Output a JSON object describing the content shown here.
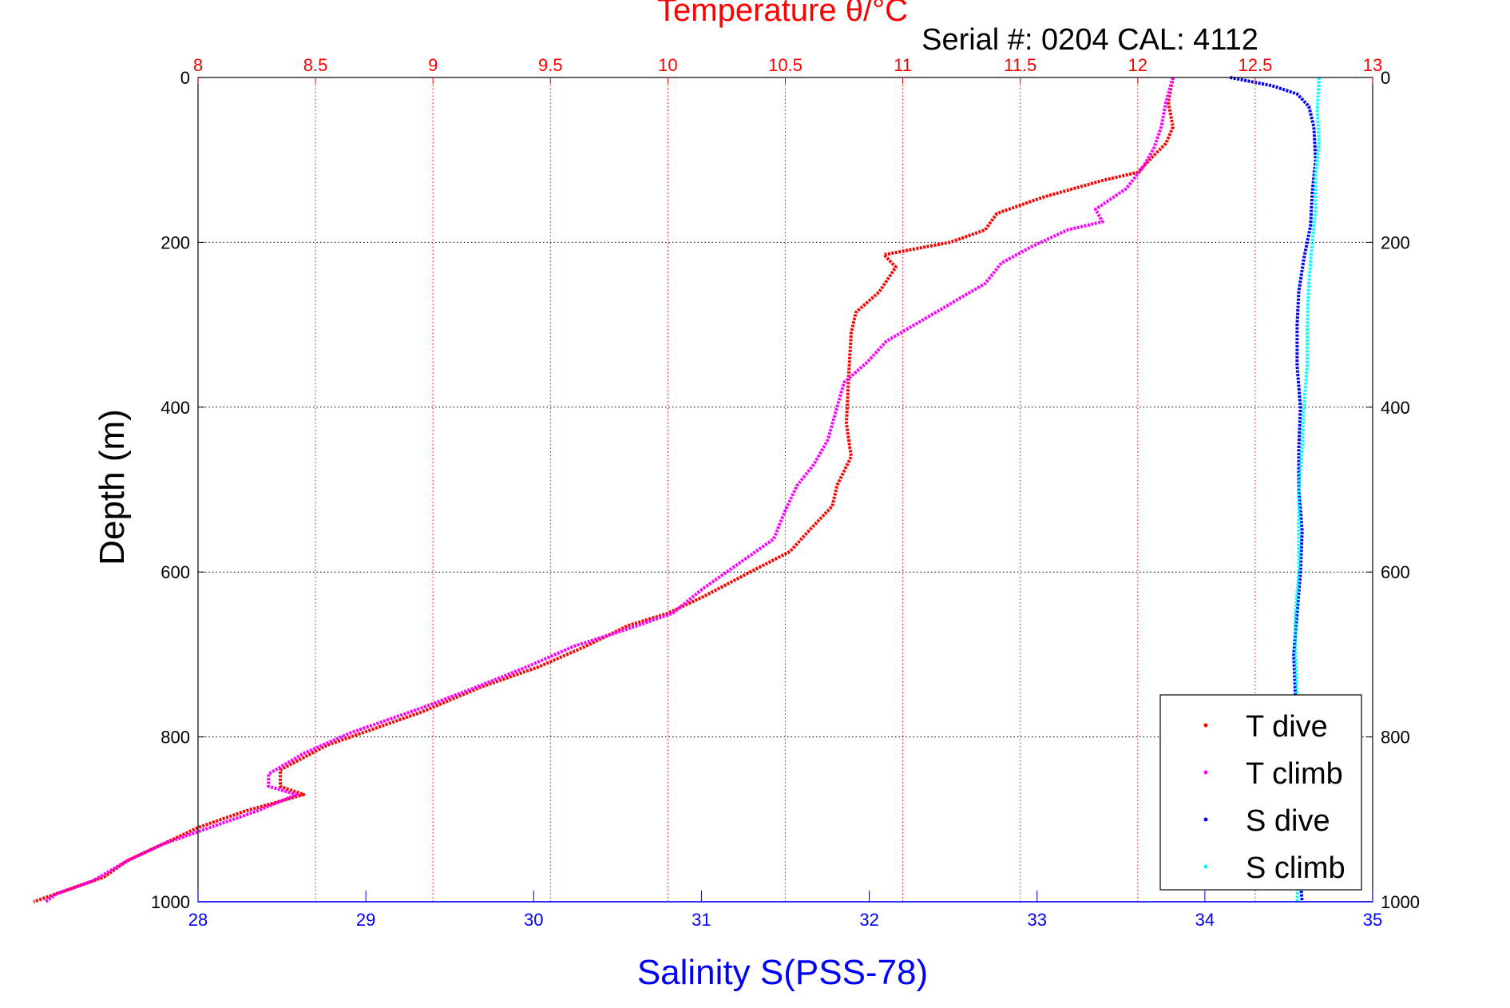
{
  "chart_data": {
    "type": "line",
    "title": "Temperature θ/°C",
    "subtitle": "Serial #: 0204  CAL: 4112",
    "ylabel": "Depth (m)",
    "x_top_label": "Temperature θ/°C",
    "x_bottom_label": "Salinity S(PSS-78)",
    "y_ticks": [
      "0",
      "200",
      "400",
      "600",
      "800",
      "1000"
    ],
    "y_tick_values": [
      0,
      200,
      400,
      600,
      800,
      1000
    ],
    "temp_ticks": [
      "8",
      "8.5",
      "9",
      "9.5",
      "10",
      "10.5",
      "11",
      "11.5",
      "12",
      "12.5",
      "13"
    ],
    "temp_tick_values": [
      8,
      8.5,
      9,
      9.5,
      10,
      10.5,
      11,
      11.5,
      12,
      12.5,
      13
    ],
    "sal_ticks": [
      "28",
      "29",
      "30",
      "31",
      "32",
      "33",
      "34",
      "35"
    ],
    "sal_tick_values": [
      28,
      29,
      30,
      31,
      32,
      33,
      34,
      35
    ],
    "ylim": [
      0,
      1000
    ],
    "temp_lim": [
      8,
      13
    ],
    "sal_lim": [
      28,
      35
    ],
    "y_reversed": true,
    "grid": true,
    "legend_position": "bottom-right",
    "colors": {
      "temp_axis": "#ff0000",
      "sal_axis": "#0000ff",
      "grid_temp": "#ff0000",
      "grid_depth": "#000000"
    },
    "series": [
      {
        "name": "T dive",
        "axis": "temperature",
        "color": "#ff0000",
        "points": [
          [
            12.15,
            0
          ],
          [
            12.13,
            30
          ],
          [
            12.15,
            60
          ],
          [
            12.12,
            80
          ],
          [
            12.05,
            100
          ],
          [
            12.0,
            115
          ],
          [
            11.85,
            125
          ],
          [
            11.6,
            145
          ],
          [
            11.4,
            165
          ],
          [
            11.35,
            185
          ],
          [
            11.2,
            200
          ],
          [
            10.92,
            215
          ],
          [
            10.97,
            230
          ],
          [
            10.9,
            260
          ],
          [
            10.8,
            285
          ],
          [
            10.78,
            310
          ],
          [
            10.77,
            360
          ],
          [
            10.76,
            420
          ],
          [
            10.78,
            460
          ],
          [
            10.72,
            495
          ],
          [
            10.7,
            520
          ],
          [
            10.6,
            550
          ],
          [
            10.52,
            575
          ],
          [
            10.35,
            600
          ],
          [
            10.15,
            630
          ],
          [
            10.0,
            650
          ],
          [
            9.83,
            665
          ],
          [
            9.65,
            690
          ],
          [
            9.45,
            715
          ],
          [
            9.2,
            740
          ],
          [
            8.95,
            770
          ],
          [
            8.75,
            790
          ],
          [
            8.55,
            810
          ],
          [
            8.35,
            840
          ],
          [
            8.35,
            860
          ],
          [
            8.45,
            870
          ],
          [
            8.2,
            890
          ],
          [
            8.0,
            910
          ],
          [
            7.85,
            930
          ],
          [
            7.7,
            950
          ],
          [
            7.6,
            970
          ],
          [
            7.45,
            985
          ],
          [
            7.3,
            1000
          ]
        ]
      },
      {
        "name": "T climb",
        "axis": "temperature",
        "color": "#ff00ff",
        "points": [
          [
            12.15,
            0
          ],
          [
            12.12,
            30
          ],
          [
            12.1,
            60
          ],
          [
            12.07,
            85
          ],
          [
            12.02,
            110
          ],
          [
            11.95,
            135
          ],
          [
            11.82,
            160
          ],
          [
            11.85,
            175
          ],
          [
            11.7,
            185
          ],
          [
            11.55,
            205
          ],
          [
            11.42,
            225
          ],
          [
            11.35,
            250
          ],
          [
            11.2,
            275
          ],
          [
            11.05,
            300
          ],
          [
            10.93,
            320
          ],
          [
            10.85,
            345
          ],
          [
            10.75,
            370
          ],
          [
            10.72,
            400
          ],
          [
            10.68,
            440
          ],
          [
            10.62,
            470
          ],
          [
            10.55,
            495
          ],
          [
            10.5,
            525
          ],
          [
            10.45,
            560
          ],
          [
            10.3,
            590
          ],
          [
            10.15,
            620
          ],
          [
            10.02,
            650
          ],
          [
            9.82,
            670
          ],
          [
            9.6,
            690
          ],
          [
            9.4,
            715
          ],
          [
            9.18,
            740
          ],
          [
            8.95,
            765
          ],
          [
            8.65,
            795
          ],
          [
            8.45,
            820
          ],
          [
            8.3,
            845
          ],
          [
            8.3,
            860
          ],
          [
            8.42,
            870
          ],
          [
            8.25,
            890
          ],
          [
            8.05,
            910
          ],
          [
            7.85,
            930
          ],
          [
            7.7,
            950
          ],
          [
            7.55,
            975
          ],
          [
            7.4,
            990
          ],
          [
            7.35,
            1000
          ]
        ]
      },
      {
        "name": "S dive",
        "axis": "salinity",
        "color": "#0000ff",
        "points": [
          [
            34.15,
            0
          ],
          [
            34.4,
            10
          ],
          [
            34.55,
            20
          ],
          [
            34.62,
            35
          ],
          [
            34.65,
            60
          ],
          [
            34.66,
            100
          ],
          [
            34.64,
            140
          ],
          [
            34.63,
            180
          ],
          [
            34.59,
            220
          ],
          [
            34.56,
            260
          ],
          [
            34.55,
            300
          ],
          [
            34.55,
            350
          ],
          [
            34.57,
            400
          ],
          [
            34.56,
            450
          ],
          [
            34.56,
            500
          ],
          [
            34.58,
            550
          ],
          [
            34.57,
            600
          ],
          [
            34.55,
            650
          ],
          [
            34.53,
            700
          ],
          [
            34.54,
            750
          ],
          [
            34.55,
            800
          ],
          [
            34.55,
            850
          ],
          [
            34.55,
            900
          ],
          [
            34.56,
            950
          ],
          [
            34.58,
            1000
          ]
        ]
      },
      {
        "name": "S climb",
        "axis": "salinity",
        "color": "#00ffff",
        "points": [
          [
            34.68,
            0
          ],
          [
            34.67,
            40
          ],
          [
            34.68,
            80
          ],
          [
            34.66,
            120
          ],
          [
            34.66,
            160
          ],
          [
            34.64,
            200
          ],
          [
            34.62,
            250
          ],
          [
            34.61,
            300
          ],
          [
            34.61,
            350
          ],
          [
            34.59,
            400
          ],
          [
            34.58,
            450
          ],
          [
            34.56,
            500
          ],
          [
            34.56,
            550
          ],
          [
            34.56,
            600
          ],
          [
            34.54,
            650
          ],
          [
            34.54,
            700
          ],
          [
            34.55,
            750
          ],
          [
            34.55,
            800
          ],
          [
            34.56,
            850
          ],
          [
            34.56,
            900
          ],
          [
            34.56,
            950
          ],
          [
            34.55,
            1000
          ]
        ]
      }
    ]
  }
}
